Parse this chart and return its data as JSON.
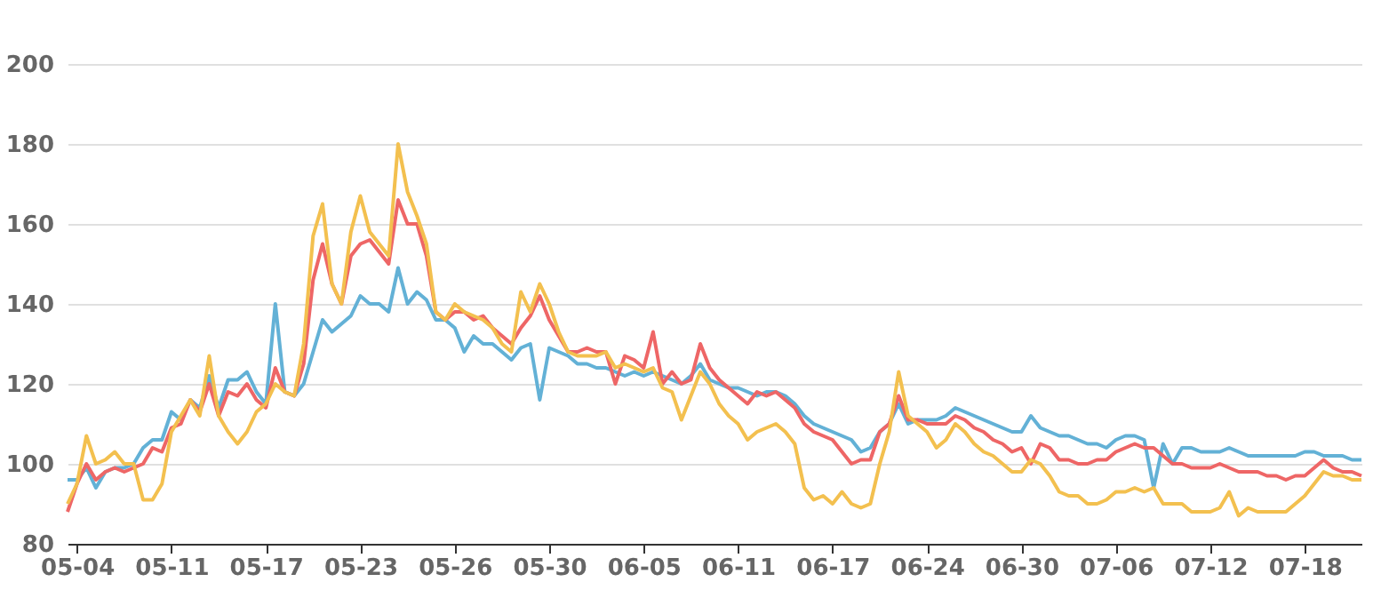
{
  "chart_data": {
    "type": "line",
    "categories": [
      null,
      "05-04",
      null,
      null,
      null,
      null,
      null,
      null,
      null,
      null,
      null,
      "05-11",
      null,
      null,
      null,
      null,
      null,
      null,
      null,
      null,
      null,
      "05-17",
      null,
      null,
      null,
      null,
      null,
      null,
      null,
      null,
      null,
      "05-23",
      null,
      null,
      null,
      null,
      null,
      null,
      null,
      null,
      null,
      "05-26",
      null,
      null,
      null,
      null,
      null,
      null,
      null,
      null,
      null,
      "05-30",
      null,
      null,
      null,
      null,
      null,
      null,
      null,
      null,
      null,
      "06-05",
      null,
      null,
      null,
      null,
      null,
      null,
      null,
      null,
      null,
      "06-11",
      null,
      null,
      null,
      null,
      null,
      null,
      null,
      null,
      null,
      "06-17",
      null,
      null,
      null,
      null,
      null,
      null,
      null,
      null,
      null,
      "06-24",
      null,
      null,
      null,
      null,
      null,
      null,
      null,
      null,
      null,
      "06-30",
      null,
      null,
      null,
      null,
      null,
      null,
      null,
      null,
      null,
      "07-06",
      null,
      null,
      null,
      null,
      null,
      null,
      null,
      null,
      null,
      "07-12",
      null,
      null,
      null,
      null,
      null,
      null,
      null,
      null,
      null,
      "07-18",
      null,
      null,
      null,
      null,
      null,
      null
    ],
    "series": [
      {
        "color": "#63b1d6",
        "values": [
          96,
          96,
          99,
          94,
          98,
          99,
          99,
          100,
          104,
          106,
          106,
          113,
          111,
          116,
          114,
          122,
          114,
          121,
          121,
          123,
          118,
          115,
          140,
          118,
          117,
          120,
          128,
          136,
          133,
          135,
          137,
          142,
          140,
          140,
          138,
          149,
          140,
          143,
          141,
          136,
          136,
          134,
          128,
          132,
          130,
          130,
          128,
          126,
          129,
          130,
          116,
          129,
          128,
          127,
          125,
          125,
          124,
          124,
          123,
          122,
          123,
          122,
          123,
          122,
          121,
          120,
          122,
          125,
          121,
          120,
          119,
          119,
          118,
          117,
          118,
          118,
          117,
          115,
          112,
          110,
          109,
          108,
          107,
          106,
          103,
          104,
          108,
          110,
          115,
          110,
          111,
          111,
          111,
          112,
          114,
          113,
          112,
          111,
          110,
          109,
          108,
          108,
          112,
          109,
          108,
          107,
          107,
          106,
          105,
          105,
          104,
          106,
          107,
          107,
          106,
          94,
          105,
          100,
          104,
          104,
          103,
          103,
          103,
          104,
          103,
          102,
          102,
          102,
          102,
          102,
          102,
          103,
          103,
          102,
          102,
          102,
          101,
          101
        ]
      },
      {
        "color": "#ee6666",
        "values": [
          88,
          95,
          100,
          96,
          98,
          99,
          98,
          99,
          100,
          104,
          103,
          109,
          110,
          116,
          113,
          120,
          112,
          118,
          117,
          120,
          116,
          114,
          124,
          118,
          117,
          125,
          146,
          155,
          145,
          140,
          152,
          155,
          156,
          153,
          150,
          166,
          160,
          160,
          152,
          138,
          136,
          138,
          138,
          136,
          137,
          134,
          132,
          130,
          134,
          137,
          142,
          136,
          132,
          128,
          128,
          129,
          128,
          128,
          120,
          127,
          126,
          124,
          133,
          120,
          123,
          120,
          121,
          130,
          124,
          121,
          119,
          117,
          115,
          118,
          117,
          118,
          116,
          114,
          110,
          108,
          107,
          106,
          103,
          100,
          101,
          101,
          108,
          110,
          117,
          111,
          111,
          110,
          110,
          110,
          112,
          111,
          109,
          108,
          106,
          105,
          103,
          104,
          100,
          105,
          104,
          101,
          101,
          100,
          100,
          101,
          101,
          103,
          104,
          105,
          104,
          104,
          102,
          100,
          100,
          99,
          99,
          99,
          100,
          99,
          98,
          98,
          98,
          97,
          97,
          96,
          97,
          97,
          99,
          101,
          99,
          98,
          98,
          97
        ]
      },
      {
        "color": "#f3c04f",
        "values": [
          90,
          95,
          107,
          100,
          101,
          103,
          100,
          100,
          91,
          91,
          95,
          108,
          112,
          116,
          112,
          127,
          112,
          108,
          105,
          108,
          113,
          115,
          120,
          118,
          117,
          130,
          157,
          165,
          145,
          140,
          158,
          167,
          158,
          155,
          152,
          180,
          168,
          162,
          155,
          138,
          136,
          140,
          138,
          137,
          136,
          134,
          130,
          128,
          143,
          138,
          145,
          140,
          133,
          128,
          127,
          127,
          127,
          128,
          124,
          125,
          124,
          123,
          124,
          119,
          118,
          111,
          117,
          123,
          120,
          115,
          112,
          110,
          106,
          108,
          109,
          110,
          108,
          105,
          94,
          91,
          92,
          90,
          93,
          90,
          89,
          90,
          100,
          108,
          123,
          112,
          110,
          108,
          104,
          106,
          110,
          108,
          105,
          103,
          102,
          100,
          98,
          98,
          101,
          100,
          97,
          93,
          92,
          92,
          90,
          90,
          91,
          93,
          93,
          94,
          93,
          94,
          90,
          90,
          90,
          88,
          88,
          88,
          89,
          93,
          87,
          89,
          88,
          88,
          88,
          88,
          90,
          92,
          95,
          98,
          97,
          97,
          96,
          96
        ]
      }
    ],
    "ylim": [
      80,
      200
    ],
    "yticks": [
      80,
      100,
      120,
      140,
      160,
      180,
      200
    ],
    "grid": "y",
    "line_style": "solid",
    "marker": "none"
  }
}
